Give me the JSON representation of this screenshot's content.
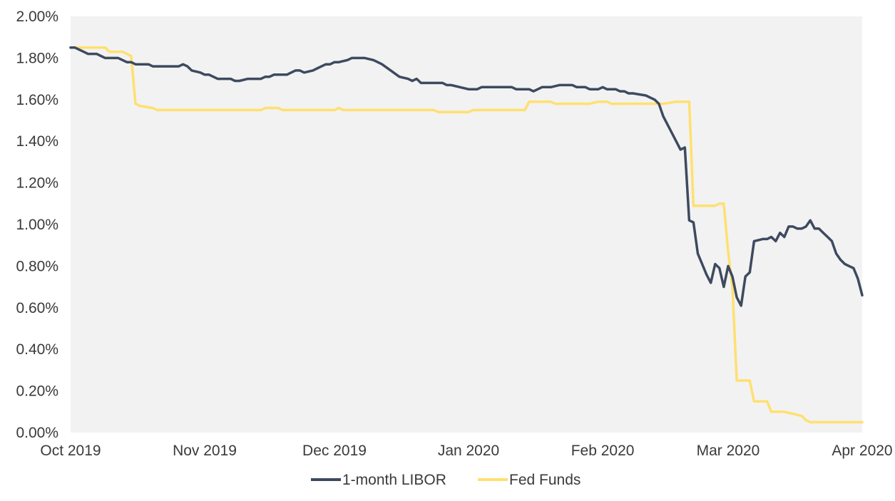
{
  "chart_data": {
    "type": "line",
    "title": "",
    "xlabel": "",
    "ylabel": "",
    "x_type": "date",
    "xlim": [
      "2019-10-01",
      "2020-04-01"
    ],
    "ylim": [
      0,
      2.0
    ],
    "y_unit": "%",
    "y_ticks": [
      "0.00%",
      "0.20%",
      "0.40%",
      "0.60%",
      "0.80%",
      "1.00%",
      "1.20%",
      "1.40%",
      "1.60%",
      "1.80%",
      "2.00%"
    ],
    "x_ticks": [
      {
        "date": "2019-10-01",
        "label": "Oct 2019"
      },
      {
        "date": "2019-11-01",
        "label": "Nov 2019"
      },
      {
        "date": "2019-12-01",
        "label": "Dec 2019"
      },
      {
        "date": "2020-01-01",
        "label": "Jan 2020"
      },
      {
        "date": "2020-02-01",
        "label": "Feb 2020"
      },
      {
        "date": "2020-03-01",
        "label": "Mar 2020"
      },
      {
        "date": "2020-04-01",
        "label": "Apr 2020"
      }
    ],
    "grid": false,
    "legend_position": "bottom",
    "plot_background": "#f2f2f2",
    "series": [
      {
        "name": "1-month LIBOR",
        "color": "#3d4a5f",
        "points": [
          [
            "2019-10-01",
            1.85
          ],
          [
            "2019-10-02",
            1.85
          ],
          [
            "2019-10-03",
            1.84
          ],
          [
            "2019-10-04",
            1.83
          ],
          [
            "2019-10-05",
            1.82
          ],
          [
            "2019-10-07",
            1.82
          ],
          [
            "2019-10-08",
            1.81
          ],
          [
            "2019-10-09",
            1.8
          ],
          [
            "2019-10-11",
            1.8
          ],
          [
            "2019-10-12",
            1.8
          ],
          [
            "2019-10-13",
            1.79
          ],
          [
            "2019-10-14",
            1.78
          ],
          [
            "2019-10-15",
            1.78
          ],
          [
            "2019-10-16",
            1.77
          ],
          [
            "2019-10-19",
            1.77
          ],
          [
            "2019-10-20",
            1.76
          ],
          [
            "2019-10-21",
            1.76
          ],
          [
            "2019-10-22",
            1.76
          ],
          [
            "2019-10-26",
            1.76
          ],
          [
            "2019-10-27",
            1.77
          ],
          [
            "2019-10-28",
            1.76
          ],
          [
            "2019-10-29",
            1.74
          ],
          [
            "2019-10-31",
            1.73
          ],
          [
            "2019-11-01",
            1.72
          ],
          [
            "2019-11-02",
            1.72
          ],
          [
            "2019-11-03",
            1.71
          ],
          [
            "2019-11-04",
            1.7
          ],
          [
            "2019-11-06",
            1.7
          ],
          [
            "2019-11-07",
            1.7
          ],
          [
            "2019-11-08",
            1.69
          ],
          [
            "2019-11-09",
            1.69
          ],
          [
            "2019-11-11",
            1.7
          ],
          [
            "2019-11-13",
            1.7
          ],
          [
            "2019-11-14",
            1.7
          ],
          [
            "2019-11-15",
            1.71
          ],
          [
            "2019-11-16",
            1.71
          ],
          [
            "2019-11-17",
            1.72
          ],
          [
            "2019-11-19",
            1.72
          ],
          [
            "2019-11-20",
            1.72
          ],
          [
            "2019-11-21",
            1.73
          ],
          [
            "2019-11-22",
            1.74
          ],
          [
            "2019-11-23",
            1.74
          ],
          [
            "2019-11-24",
            1.73
          ],
          [
            "2019-11-26",
            1.74
          ],
          [
            "2019-11-27",
            1.75
          ],
          [
            "2019-11-28",
            1.76
          ],
          [
            "2019-11-29",
            1.77
          ],
          [
            "2019-11-30",
            1.77
          ],
          [
            "2019-12-01",
            1.78
          ],
          [
            "2019-12-02",
            1.78
          ],
          [
            "2019-12-04",
            1.79
          ],
          [
            "2019-12-05",
            1.8
          ],
          [
            "2019-12-06",
            1.8
          ],
          [
            "2019-12-07",
            1.8
          ],
          [
            "2019-12-08",
            1.8
          ],
          [
            "2019-12-10",
            1.79
          ],
          [
            "2019-12-11",
            1.78
          ],
          [
            "2019-12-12",
            1.77
          ],
          [
            "2019-12-14",
            1.74
          ],
          [
            "2019-12-16",
            1.71
          ],
          [
            "2019-12-18",
            1.7
          ],
          [
            "2019-12-19",
            1.69
          ],
          [
            "2019-12-20",
            1.7
          ],
          [
            "2019-12-21",
            1.68
          ],
          [
            "2019-12-22",
            1.68
          ],
          [
            "2019-12-23",
            1.68
          ],
          [
            "2019-12-24",
            1.68
          ],
          [
            "2019-12-26",
            1.68
          ],
          [
            "2019-12-27",
            1.67
          ],
          [
            "2019-12-28",
            1.67
          ],
          [
            "2019-12-30",
            1.66
          ],
          [
            "2020-01-01",
            1.65
          ],
          [
            "2020-01-02",
            1.65
          ],
          [
            "2020-01-03",
            1.65
          ],
          [
            "2020-01-04",
            1.66
          ],
          [
            "2020-01-06",
            1.66
          ],
          [
            "2020-01-08",
            1.66
          ],
          [
            "2020-01-09",
            1.66
          ],
          [
            "2020-01-10",
            1.66
          ],
          [
            "2020-01-11",
            1.66
          ],
          [
            "2020-01-12",
            1.65
          ],
          [
            "2020-01-14",
            1.65
          ],
          [
            "2020-01-15",
            1.65
          ],
          [
            "2020-01-16",
            1.64
          ],
          [
            "2020-01-17",
            1.65
          ],
          [
            "2020-01-18",
            1.66
          ],
          [
            "2020-01-20",
            1.66
          ],
          [
            "2020-01-22",
            1.67
          ],
          [
            "2020-01-23",
            1.67
          ],
          [
            "2020-01-24",
            1.67
          ],
          [
            "2020-01-25",
            1.67
          ],
          [
            "2020-01-26",
            1.66
          ],
          [
            "2020-01-28",
            1.66
          ],
          [
            "2020-01-29",
            1.65
          ],
          [
            "2020-01-30",
            1.65
          ],
          [
            "2020-01-31",
            1.65
          ],
          [
            "2020-02-01",
            1.66
          ],
          [
            "2020-02-02",
            1.65
          ],
          [
            "2020-02-04",
            1.65
          ],
          [
            "2020-02-05",
            1.64
          ],
          [
            "2020-02-06",
            1.64
          ],
          [
            "2020-02-07",
            1.63
          ],
          [
            "2020-02-08",
            1.63
          ],
          [
            "2020-02-11",
            1.62
          ],
          [
            "2020-02-12",
            1.61
          ],
          [
            "2020-02-13",
            1.6
          ],
          [
            "2020-02-14",
            1.58
          ],
          [
            "2020-02-15",
            1.52
          ],
          [
            "2020-02-17",
            1.44
          ],
          [
            "2020-02-19",
            1.36
          ],
          [
            "2020-02-20",
            1.37
          ],
          [
            "2020-02-21",
            1.02
          ],
          [
            "2020-02-22",
            1.01
          ],
          [
            "2020-02-23",
            0.86
          ],
          [
            "2020-02-24",
            0.81
          ],
          [
            "2020-02-25",
            0.76
          ],
          [
            "2020-02-26",
            0.72
          ],
          [
            "2020-02-27",
            0.81
          ],
          [
            "2020-02-28",
            0.79
          ],
          [
            "2020-02-29",
            0.7
          ],
          [
            "2020-03-01",
            0.8
          ],
          [
            "2020-03-02",
            0.75
          ],
          [
            "2020-03-03",
            0.65
          ],
          [
            "2020-03-04",
            0.61
          ],
          [
            "2020-03-05",
            0.75
          ],
          [
            "2020-03-06",
            0.77
          ],
          [
            "2020-03-07",
            0.92
          ],
          [
            "2020-03-09",
            0.93
          ],
          [
            "2020-03-10",
            0.93
          ],
          [
            "2020-03-11",
            0.94
          ],
          [
            "2020-03-12",
            0.92
          ],
          [
            "2020-03-13",
            0.96
          ],
          [
            "2020-03-14",
            0.94
          ],
          [
            "2020-03-15",
            0.99
          ],
          [
            "2020-03-16",
            0.99
          ],
          [
            "2020-03-17",
            0.98
          ],
          [
            "2020-03-18",
            0.98
          ],
          [
            "2020-03-19",
            0.99
          ],
          [
            "2020-03-20",
            1.02
          ],
          [
            "2020-03-21",
            0.98
          ],
          [
            "2020-03-22",
            0.98
          ],
          [
            "2020-03-23",
            0.96
          ],
          [
            "2020-03-24",
            0.94
          ],
          [
            "2020-03-25",
            0.92
          ],
          [
            "2020-03-26",
            0.86
          ],
          [
            "2020-03-27",
            0.83
          ],
          [
            "2020-03-28",
            0.81
          ],
          [
            "2020-03-29",
            0.8
          ],
          [
            "2020-03-30",
            0.79
          ],
          [
            "2020-03-31",
            0.74
          ],
          [
            "2020-04-01",
            0.66
          ]
        ]
      },
      {
        "name": "Fed Funds",
        "color": "#ffe070",
        "points": [
          [
            "2019-10-01",
            1.85
          ],
          [
            "2019-10-09",
            1.85
          ],
          [
            "2019-10-10",
            1.83
          ],
          [
            "2019-10-13",
            1.83
          ],
          [
            "2019-10-14",
            1.82
          ],
          [
            "2019-10-15",
            1.81
          ],
          [
            "2019-10-16",
            1.58
          ],
          [
            "2019-10-17",
            1.57
          ],
          [
            "2019-10-20",
            1.56
          ],
          [
            "2019-10-21",
            1.55
          ],
          [
            "2019-11-14",
            1.55
          ],
          [
            "2019-11-15",
            1.56
          ],
          [
            "2019-11-18",
            1.56
          ],
          [
            "2019-11-19",
            1.55
          ],
          [
            "2019-12-01",
            1.55
          ],
          [
            "2019-12-02",
            1.56
          ],
          [
            "2019-12-03",
            1.55
          ],
          [
            "2019-12-24",
            1.55
          ],
          [
            "2019-12-25",
            1.54
          ],
          [
            "2020-01-01",
            1.54
          ],
          [
            "2020-01-02",
            1.55
          ],
          [
            "2020-01-14",
            1.55
          ],
          [
            "2020-01-15",
            1.59
          ],
          [
            "2020-01-16",
            1.59
          ],
          [
            "2020-01-20",
            1.59
          ],
          [
            "2020-01-21",
            1.58
          ],
          [
            "2020-01-28",
            1.58
          ],
          [
            "2020-01-29",
            1.58
          ],
          [
            "2020-01-31",
            1.59
          ],
          [
            "2020-02-02",
            1.59
          ],
          [
            "2020-02-03",
            1.58
          ],
          [
            "2020-02-12",
            1.58
          ],
          [
            "2020-02-15",
            1.58
          ],
          [
            "2020-02-18",
            1.59
          ],
          [
            "2020-02-21",
            1.59
          ],
          [
            "2020-02-22",
            1.09
          ],
          [
            "2020-02-26",
            1.09
          ],
          [
            "2020-02-27",
            1.09
          ],
          [
            "2020-02-28",
            1.1
          ],
          [
            "2020-02-29",
            1.1
          ],
          [
            "2020-03-01",
            0.87
          ],
          [
            "2020-03-02",
            0.7
          ],
          [
            "2020-03-03",
            0.25
          ],
          [
            "2020-03-05",
            0.25
          ],
          [
            "2020-03-06",
            0.25
          ],
          [
            "2020-03-07",
            0.15
          ],
          [
            "2020-03-10",
            0.15
          ],
          [
            "2020-03-11",
            0.1
          ],
          [
            "2020-03-13",
            0.1
          ],
          [
            "2020-03-14",
            0.1
          ],
          [
            "2020-03-16",
            0.09
          ],
          [
            "2020-03-18",
            0.08
          ],
          [
            "2020-03-19",
            0.06
          ],
          [
            "2020-03-20",
            0.05
          ],
          [
            "2020-04-01",
            0.05
          ]
        ]
      }
    ]
  }
}
